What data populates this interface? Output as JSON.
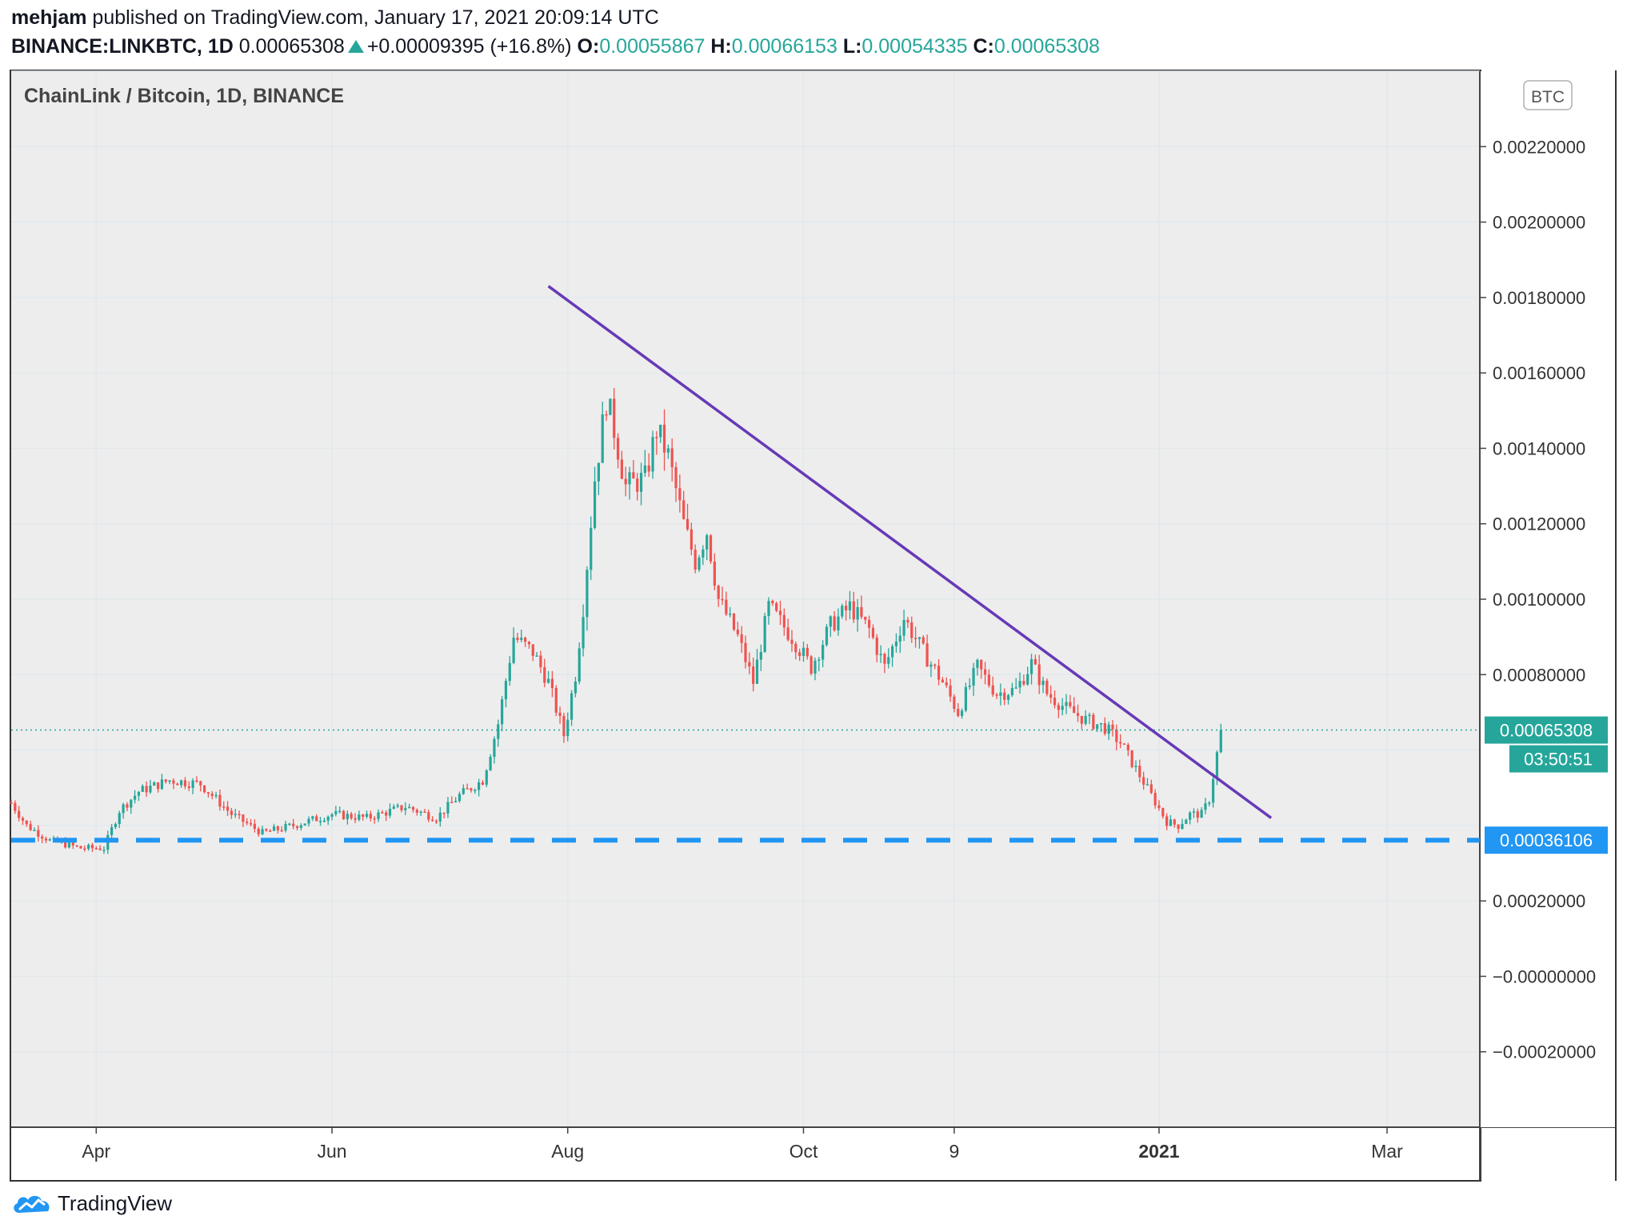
{
  "header": {
    "author": "mehjam",
    "published_text": " published on TradingView.com, January 17, 2021 20:09:14 UTC",
    "symbol": "BINANCE:LINKBTC, 1D",
    "last": "0.00065308",
    "change": "+0.00009395 (+16.8%)",
    "o_label": "O:",
    "o_value": "0.00055867",
    "h_label": "H:",
    "h_value": "0.00066153",
    "l_label": "L:",
    "l_value": "0.00054335",
    "c_label": "C:",
    "c_value": "0.00065308"
  },
  "chart_data": {
    "type": "candlestick",
    "title": "ChainLink / Bitcoin, 1D, BINANCE",
    "currency_badge": "BTC",
    "x_ticks": [
      "Apr",
      "Jun",
      "Aug",
      "Oct",
      "9",
      "2021",
      "Mar"
    ],
    "y_ticks": [
      "0.00220000",
      "0.00200000",
      "0.00180000",
      "0.00160000",
      "0.00140000",
      "0.00120000",
      "0.00100000",
      "0.00080000",
      "0.00020000",
      "−0.00000000",
      "−0.00020000"
    ],
    "ylim": [
      -0.0004,
      0.0024
    ],
    "last_price_label": "0.00065308",
    "countdown_label": "03:50:51",
    "support_label": "0.00036106",
    "support_level": 0.00036106,
    "last_price": 0.00065308,
    "trendline": {
      "start": {
        "date": "2020-07-27",
        "value": 0.00183
      },
      "end": {
        "date": "2021-01-30",
        "value": 0.00042
      }
    },
    "price_path": [
      [
        "2020-03-10",
        0.00046
      ],
      [
        "2020-03-14",
        0.0004
      ],
      [
        "2020-03-20",
        0.00036
      ],
      [
        "2020-03-28",
        0.00034
      ],
      [
        "2020-04-03",
        0.00034
      ],
      [
        "2020-04-07",
        0.00044
      ],
      [
        "2020-04-12",
        0.00049
      ],
      [
        "2020-04-20",
        0.00052
      ],
      [
        "2020-04-28",
        0.00051
      ],
      [
        "2020-05-06",
        0.00043
      ],
      [
        "2020-05-14",
        0.00038
      ],
      [
        "2020-05-22",
        0.0004
      ],
      [
        "2020-06-01",
        0.00043
      ],
      [
        "2020-06-10",
        0.00042
      ],
      [
        "2020-06-20",
        0.00045
      ],
      [
        "2020-06-28",
        0.00042
      ],
      [
        "2020-07-04",
        0.00048
      ],
      [
        "2020-07-10",
        0.00052
      ],
      [
        "2020-07-14",
        0.00067
      ],
      [
        "2020-07-18",
        0.0009
      ],
      [
        "2020-07-23",
        0.00086
      ],
      [
        "2020-07-27",
        0.00078
      ],
      [
        "2020-07-31",
        0.00064
      ],
      [
        "2020-08-03",
        0.0008
      ],
      [
        "2020-08-05",
        0.00098
      ],
      [
        "2020-08-08",
        0.00132
      ],
      [
        "2020-08-11",
        0.00153
      ],
      [
        "2020-08-13",
        0.00145
      ],
      [
        "2020-08-16",
        0.0013
      ],
      [
        "2020-08-21",
        0.00132
      ],
      [
        "2020-08-24",
        0.00145
      ],
      [
        "2020-08-27",
        0.00138
      ],
      [
        "2020-08-31",
        0.0012
      ],
      [
        "2020-09-03",
        0.0011
      ],
      [
        "2020-09-06",
        0.00118
      ],
      [
        "2020-09-09",
        0.001
      ],
      [
        "2020-09-14",
        0.0009
      ],
      [
        "2020-09-18",
        0.00078
      ],
      [
        "2020-09-22",
        0.00098
      ],
      [
        "2020-09-28",
        0.0009
      ],
      [
        "2020-10-03",
        0.00082
      ],
      [
        "2020-10-08",
        0.00093
      ],
      [
        "2020-10-13",
        0.00098
      ],
      [
        "2020-10-18",
        0.00092
      ],
      [
        "2020-10-22",
        0.00082
      ],
      [
        "2020-10-27",
        0.00095
      ],
      [
        "2020-11-01",
        0.00086
      ],
      [
        "2020-11-06",
        0.00078
      ],
      [
        "2020-11-10",
        0.0007
      ],
      [
        "2020-11-15",
        0.00082
      ],
      [
        "2020-11-20",
        0.00075
      ],
      [
        "2020-11-25",
        0.00076
      ],
      [
        "2020-11-29",
        0.00083
      ],
      [
        "2020-12-03",
        0.00075
      ],
      [
        "2020-12-08",
        0.00071
      ],
      [
        "2020-12-13",
        0.00068
      ],
      [
        "2020-12-18",
        0.00066
      ],
      [
        "2020-12-22",
        0.00062
      ],
      [
        "2020-12-26",
        0.00055
      ],
      [
        "2020-12-30",
        0.00048
      ],
      [
        "2021-01-03",
        0.00041
      ],
      [
        "2021-01-06",
        0.0004
      ],
      [
        "2021-01-09",
        0.00043
      ],
      [
        "2021-01-12",
        0.00043
      ],
      [
        "2021-01-14",
        0.00047
      ],
      [
        "2021-01-17",
        0.00065
      ]
    ]
  },
  "colors": {
    "up": "#26a69a",
    "down": "#ef5350",
    "trendline": "#673ab7",
    "support": "#2196f3",
    "background": "#ededed",
    "grid": "#e1e8ec",
    "text": "#131722"
  },
  "footer": {
    "brand": "TradingView",
    "logo_icon": "tradingview-cloud-icon"
  }
}
